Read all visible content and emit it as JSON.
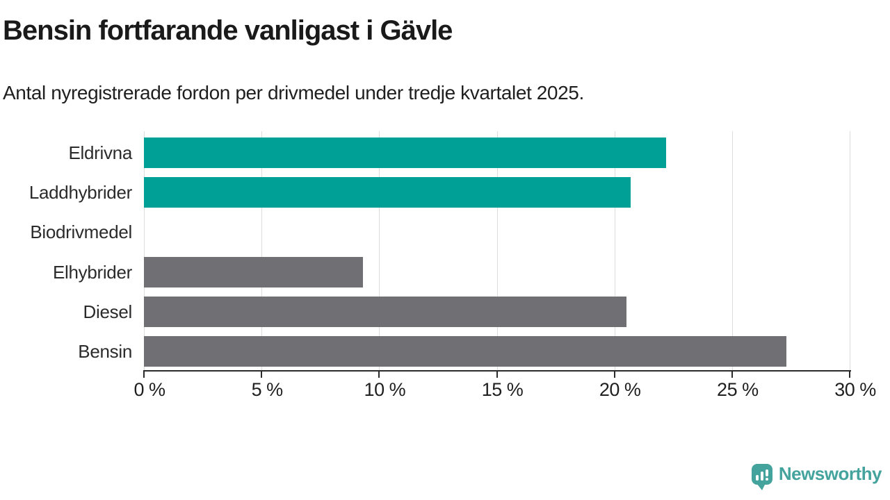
{
  "header": {
    "title": "Bensin fortfarande vanligast i Gävle",
    "subtitle": "Antal nyregistrerade fordon per drivmedel under tredje kvartalet 2025."
  },
  "chart_data": {
    "type": "bar",
    "orientation": "horizontal",
    "title": "Bensin fortfarande vanligast i Gävle",
    "subtitle": "Antal nyregistrerade fordon per drivmedel under tredje kvartalet 2025.",
    "categories": [
      "Eldrivna",
      "Laddhybrider",
      "Biodrivmedel",
      "Elhybrider",
      "Diesel",
      "Bensin"
    ],
    "values": [
      22.2,
      20.7,
      0,
      9.3,
      20.5,
      27.3
    ],
    "unit": "%",
    "bar_colors": [
      "#00a096",
      "#00a096",
      "#6f6f74",
      "#6f6f74",
      "#6f6f74",
      "#6f6f74"
    ],
    "xlim": [
      0,
      30
    ],
    "x_ticks": [
      0,
      5,
      10,
      15,
      20,
      25,
      30
    ],
    "x_tick_labels": [
      "0 %",
      "5 %",
      "10 %",
      "15 %",
      "20 %",
      "25 %",
      "30 %"
    ],
    "xlabel": "",
    "ylabel": "",
    "grid": "vertical",
    "legend": "none"
  },
  "branding": {
    "name": "Newsworthy",
    "logo_icon": "bar-chart-speech-bubble",
    "color": "#45a39d"
  },
  "colors": {
    "highlight_teal": "#00a096",
    "bar_gray": "#6f6f74",
    "gridline": "#dcdcdc",
    "axis": "#2b2b2b",
    "text": "#1f1f1f"
  }
}
